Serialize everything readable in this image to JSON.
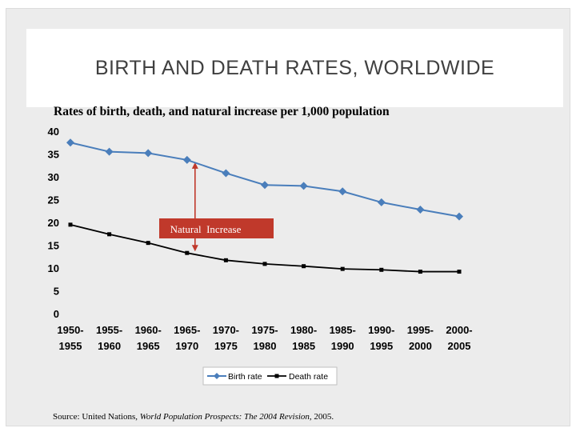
{
  "slide": {
    "title": "BIRTH AND DEATH RATES, WORLDWIDE",
    "source_prefix": "Source: United Nations, ",
    "source_title": "World Population Prospects: The 2004 Revision",
    "source_suffix": ", 2005."
  },
  "chart_data": {
    "type": "line",
    "title": "Rates of birth, death, and natural increase per 1,000 population",
    "xlabel": "",
    "ylabel": "",
    "ylim": [
      0,
      40
    ],
    "yticks": [
      "0",
      "5",
      "10",
      "15",
      "20",
      "25",
      "30",
      "35",
      "40"
    ],
    "categories": [
      [
        "1950-",
        "1955"
      ],
      [
        "1955-",
        "1960"
      ],
      [
        "1960-",
        "1965"
      ],
      [
        "1965-",
        "1970"
      ],
      [
        "1970-",
        "1975"
      ],
      [
        "1975-",
        "1980"
      ],
      [
        "1980-",
        "1985"
      ],
      [
        "1985-",
        "1990"
      ],
      [
        "1990-",
        "1995"
      ],
      [
        "1995-",
        "2000"
      ],
      [
        "2000-",
        "2005"
      ]
    ],
    "series": [
      {
        "name": "Birth rate",
        "color": "#4a7ebb",
        "marker": "diamond",
        "values": [
          37.5,
          35.5,
          35.2,
          33.7,
          30.8,
          28.2,
          28.0,
          26.8,
          24.4,
          22.8,
          21.3
        ]
      },
      {
        "name": "Death rate",
        "color": "#000000",
        "marker": "square",
        "values": [
          19.5,
          17.4,
          15.5,
          13.3,
          11.7,
          10.9,
          10.4,
          9.8,
          9.6,
          9.2,
          9.2
        ]
      }
    ],
    "annotation": {
      "label": "Natural Increase",
      "category_index": 3,
      "from_value": 33.7,
      "to_value": 13.3,
      "color": "#c0392b"
    },
    "legend": "bottom-center"
  }
}
